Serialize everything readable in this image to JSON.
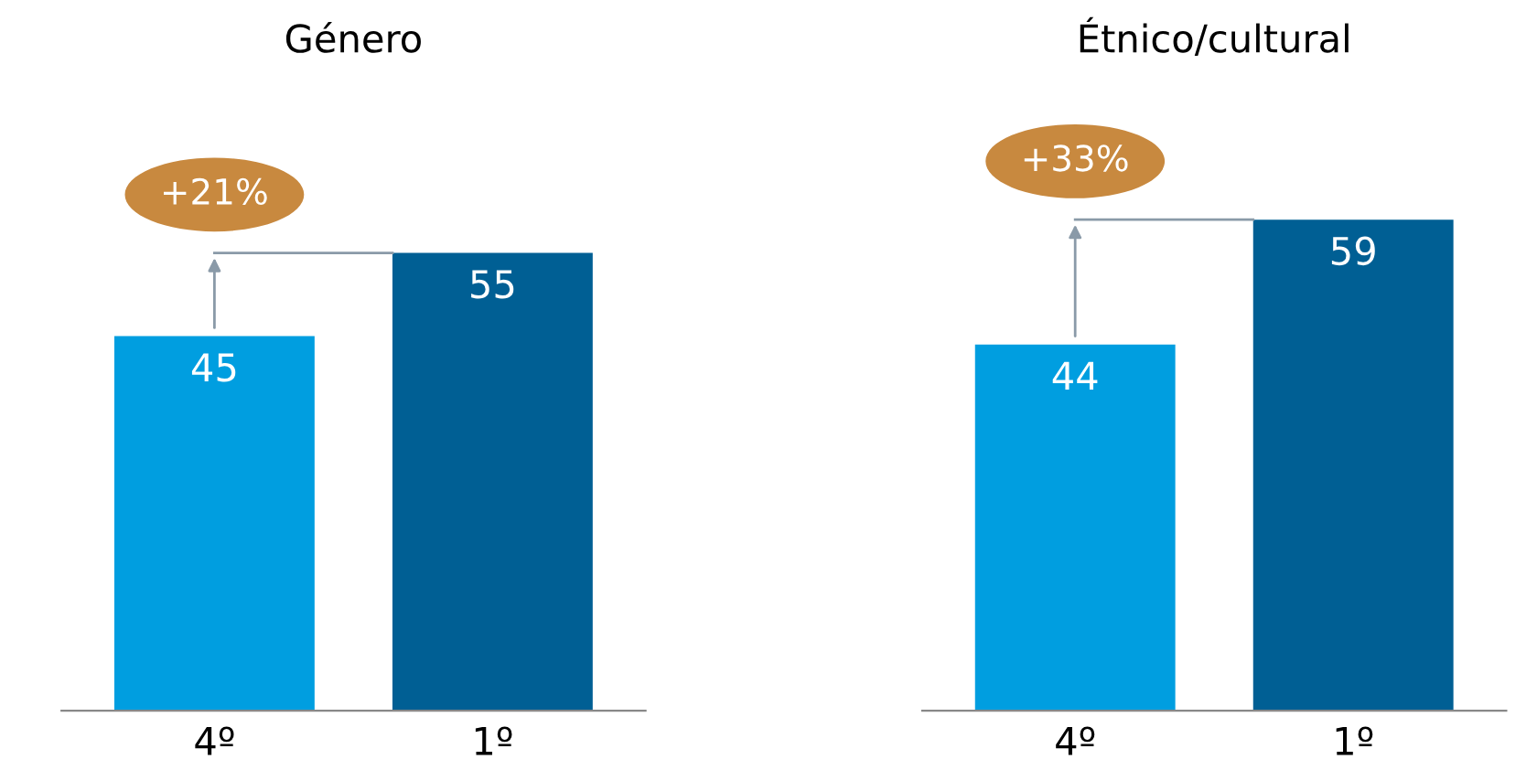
{
  "chart_data": [
    {
      "type": "bar",
      "title": "Género",
      "categories": [
        "4º",
        "1º"
      ],
      "values": [
        45,
        55
      ],
      "colors": [
        "#009ee0",
        "#005f94"
      ],
      "data_labels": true,
      "annotations": [
        "+21%"
      ],
      "grid": false,
      "legend": false,
      "tick_labels": "x"
    },
    {
      "type": "bar",
      "title": "Étnico/cultural",
      "categories": [
        "4º",
        "1º"
      ],
      "values": [
        44,
        59
      ],
      "colors": [
        "#009ee0",
        "#005f94"
      ],
      "data_labels": true,
      "annotations": [
        "+33%"
      ],
      "grid": false,
      "legend": false,
      "tick_labels": "x"
    }
  ]
}
